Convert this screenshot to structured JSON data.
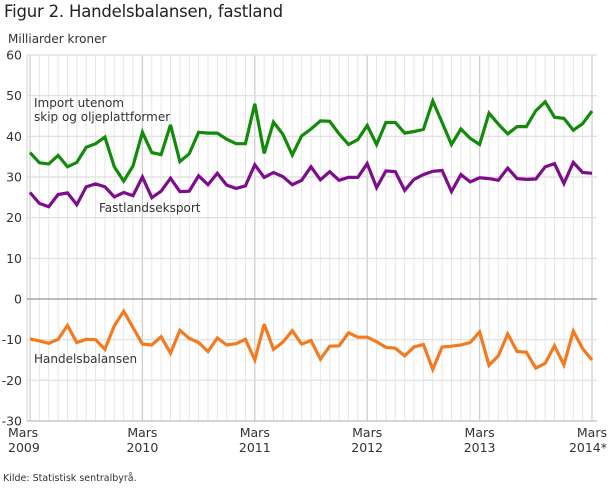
{
  "title": "Figur 2. Handelsbalansen, fastland",
  "source": "Kilde: Statistisk sentralbyrå.",
  "chart_data": {
    "type": "line",
    "title": "Figur 2. Handelsbalansen, fastland",
    "ylabel": "Milliarder kroner",
    "xlabel": "",
    "ylim": [
      -30,
      60
    ],
    "yticks": [
      60,
      50,
      40,
      30,
      20,
      10,
      0,
      -10,
      -20,
      -30
    ],
    "grid": true,
    "legend": "inline labels",
    "x_start": "Mars 2009",
    "x_end": "Mars 2014*",
    "x_count": 61,
    "xticks": [
      {
        "index": 0,
        "line1": "Mars",
        "line2": "2009"
      },
      {
        "index": 12,
        "line1": "Mars",
        "line2": "2010"
      },
      {
        "index": 24,
        "line1": "Mars",
        "line2": "2011"
      },
      {
        "index": 36,
        "line1": "Mars",
        "line2": "2012"
      },
      {
        "index": 48,
        "line1": "Mars",
        "line2": "2013"
      },
      {
        "index": 60,
        "line1": "Mars",
        "line2": "2014*"
      }
    ],
    "series": [
      {
        "name": "Import utenom skip og oljeplattformer",
        "label_lines": [
          "Import utenom",
          "skip og oljeplattformer"
        ],
        "color": "#128a0a",
        "values": [
          36.0,
          33.5,
          33.2,
          35.3,
          32.5,
          33.6,
          37.3,
          38.2,
          39.8,
          32.5,
          29.0,
          32.7,
          41.0,
          36.0,
          35.5,
          42.8,
          33.8,
          35.7,
          41.0,
          40.8,
          40.8,
          39.3,
          38.2,
          38.2,
          48.0,
          35.8,
          43.5,
          40.5,
          35.4,
          40.1,
          41.8,
          43.8,
          43.7,
          40.6,
          38.0,
          39.2,
          42.7,
          38.0,
          43.4,
          43.4,
          40.8,
          41.2,
          41.7,
          48.7,
          43.4,
          38.0,
          41.8,
          39.5,
          38.0,
          45.7,
          43.0,
          40.6,
          42.4,
          42.4,
          46.3,
          48.5,
          44.7,
          44.4,
          41.5,
          43.1,
          46.2
        ]
      },
      {
        "name": "Fastlandseksport",
        "label_lines": [
          "Fastlandseksport"
        ],
        "color": "#7d0d8c",
        "values": [
          26.2,
          23.5,
          22.7,
          25.7,
          26.1,
          23.2,
          27.6,
          28.3,
          27.6,
          25.1,
          26.2,
          25.4,
          30.0,
          24.9,
          26.5,
          29.7,
          26.4,
          26.5,
          30.3,
          28.1,
          30.9,
          28.0,
          27.2,
          27.8,
          33.0,
          29.9,
          31.1,
          30.1,
          28.1,
          29.2,
          32.5,
          29.3,
          31.3,
          29.2,
          29.9,
          29.9,
          33.3,
          27.4,
          31.5,
          31.3,
          26.7,
          29.4,
          30.6,
          31.4,
          31.6,
          26.4,
          30.6,
          28.8,
          29.8,
          29.6,
          29.2,
          32.2,
          29.6,
          29.4,
          29.5,
          32.5,
          33.3,
          28.4,
          33.6,
          31.1,
          30.9
        ]
      },
      {
        "name": "Handelsbalansen",
        "label_lines": [
          "Handelsbalansen"
        ],
        "color": "#f37a1f",
        "values": [
          -9.8,
          -10.3,
          -10.9,
          -9.9,
          -6.5,
          -10.7,
          -9.9,
          -10.0,
          -12.4,
          -6.6,
          -3.0,
          -7.0,
          -11.1,
          -11.3,
          -9.3,
          -13.3,
          -7.7,
          -9.7,
          -10.7,
          -12.9,
          -9.6,
          -11.3,
          -11.0,
          -9.9,
          -15.0,
          -6.2,
          -12.4,
          -10.6,
          -7.8,
          -11.1,
          -10.2,
          -14.8,
          -11.6,
          -11.5,
          -8.3,
          -9.4,
          -9.4,
          -10.5,
          -11.9,
          -12.1,
          -14.0,
          -11.8,
          -11.2,
          -17.3,
          -11.8,
          -11.6,
          -11.3,
          -10.7,
          -8.1,
          -16.3,
          -14.0,
          -8.6,
          -12.9,
          -13.1,
          -17.0,
          -15.8,
          -11.5,
          -16.2,
          -7.9,
          -12.2,
          -15.0
        ]
      }
    ]
  }
}
